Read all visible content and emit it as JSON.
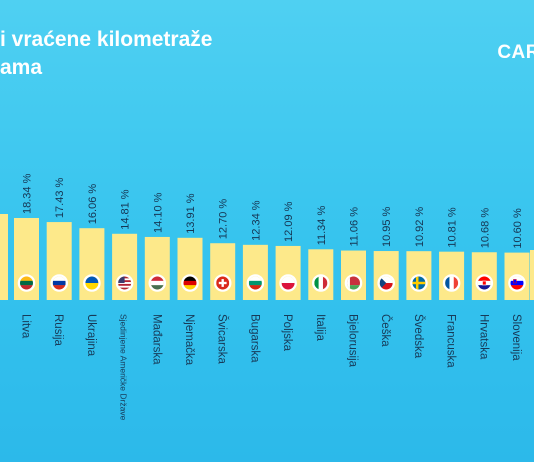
{
  "title_lines": [
    "i vraćene kilometraže",
    "ama"
  ],
  "brand": "CAR",
  "colors": {
    "bar": "#fde98a",
    "flag_bg": "#ffffff"
  },
  "chart_data": {
    "type": "bar",
    "categories": [
      "Litva",
      "Rusija",
      "Ukrajina",
      "Sjedinjene Američke Države",
      "Mađarska",
      "Njemačka",
      "Švicarska",
      "Bugarska",
      "Poljska",
      "Italija",
      "Bjelorusija",
      "Češka",
      "Švedska",
      "Francuska",
      "Hrvatska",
      "Slovenija"
    ],
    "values": [
      18.34,
      17.43,
      16.06,
      14.81,
      14.1,
      13.91,
      12.7,
      12.34,
      12.09,
      11.34,
      11.06,
      10.95,
      10.92,
      10.81,
      10.68,
      10.6
    ],
    "value_labels": [
      "18.34 %",
      "17.43 %",
      "16.06 %",
      "14.81 %",
      "14.10 %",
      "13.91 %",
      "12.70 %",
      "12.34 %",
      "12.09 %",
      "11.34 %",
      "11.06 %",
      "10.95 %",
      "10.92 %",
      "10.81 %",
      "10.68 %",
      "10.60 %"
    ],
    "flags": [
      "lithuania-flag-icon",
      "russia-flag-icon",
      "ukraine-flag-icon",
      "usa-flag-icon",
      "hungary-flag-icon",
      "germany-flag-icon",
      "switzerland-flag-icon",
      "bulgaria-flag-icon",
      "poland-flag-icon",
      "italy-flag-icon",
      "belarus-flag-icon",
      "czechia-flag-icon",
      "sweden-flag-icon",
      "france-flag-icon",
      "croatia-flag-icon",
      "slovenia-flag-icon"
    ],
    "ylim": [
      0,
      20
    ]
  }
}
